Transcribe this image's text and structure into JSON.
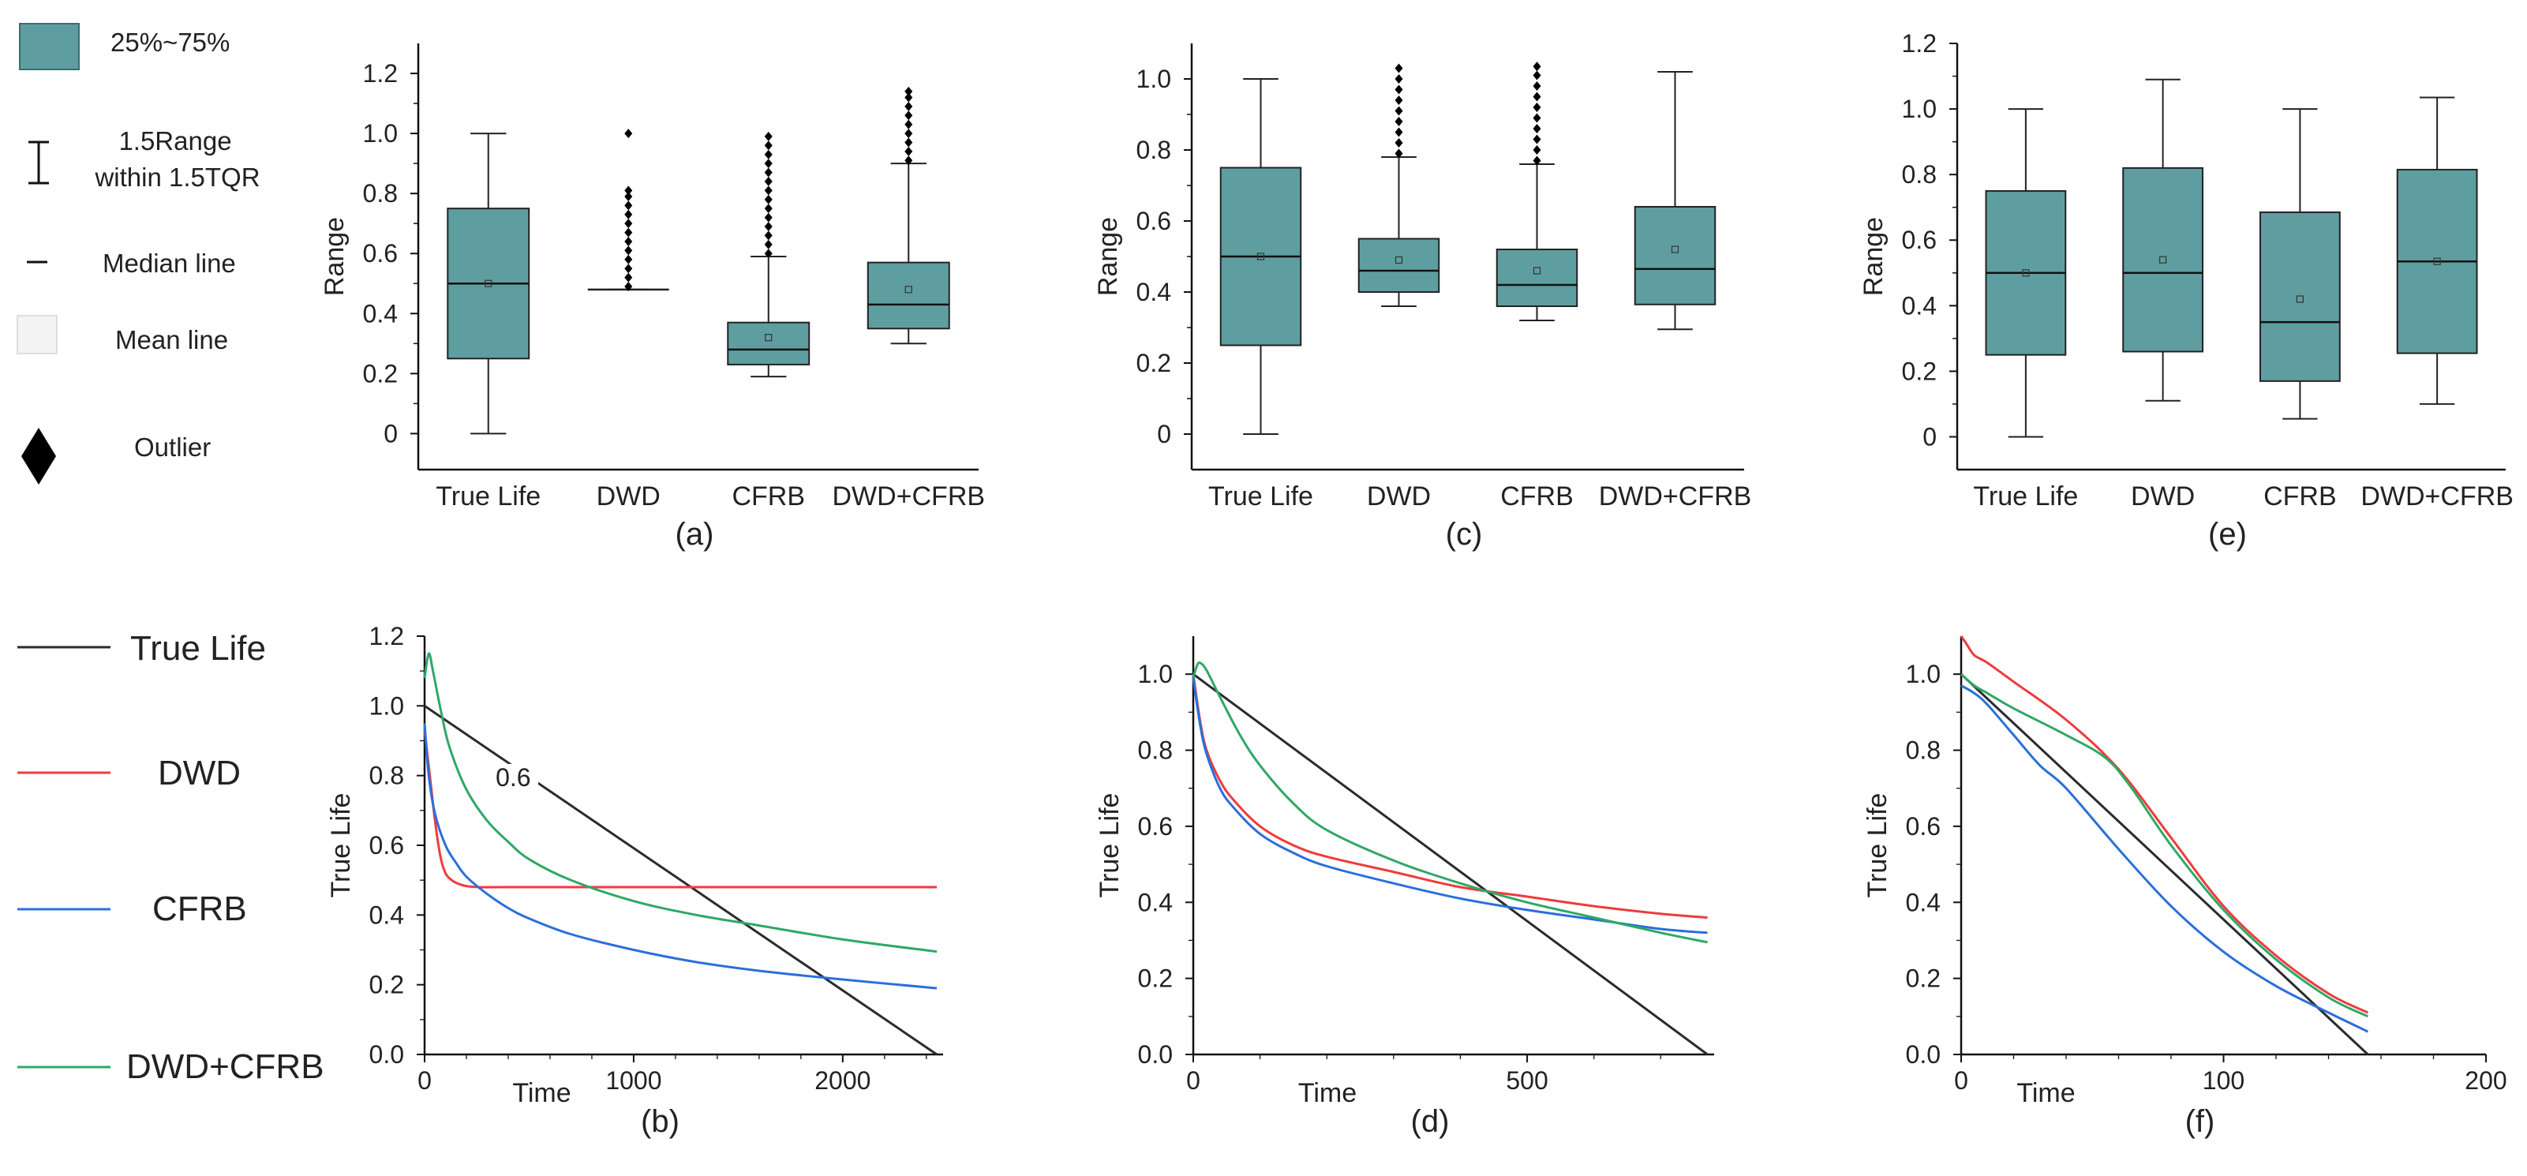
{
  "box_legend": {
    "box_label": "25%~75%",
    "whisker_label_line1": "1.5Range",
    "whisker_label_line2": "within 1.5TQR",
    "median_label": "Median line",
    "mean_label": "Mean line",
    "outlier_label": "Outlier"
  },
  "line_legend": {
    "items": [
      {
        "label": "True Life",
        "color": "#2b2b2b"
      },
      {
        "label": "DWD",
        "color": "#ee3b3b"
      },
      {
        "label": "CFRB",
        "color": "#2a6fdb"
      },
      {
        "label": "DWD+CFRB",
        "color": "#2fa866"
      }
    ]
  },
  "colors": {
    "box_fill": "#5f9ea0",
    "outlier": "#000000"
  },
  "chart_data": [
    {
      "id": "a",
      "type": "box",
      "panel_label": "(a)",
      "ylabel": "Range",
      "ylim": [
        -0.12,
        1.3
      ],
      "yticks": [
        0,
        0.2,
        0.4,
        0.6,
        0.8,
        1.0,
        1.2
      ],
      "ytick_labels": [
        "0",
        "0.2",
        "0.4",
        "0.6",
        "0.8",
        "1.0",
        "1.2"
      ],
      "categories": [
        "True Life",
        "DWD",
        "CFRB",
        "DWD+CFRB"
      ],
      "boxes": [
        {
          "whislo": 0.0,
          "q1": 0.25,
          "median": 0.5,
          "mean": 0.5,
          "q3": 0.75,
          "whishi": 1.0,
          "outliers": []
        },
        {
          "whislo": 0.48,
          "q1": 0.48,
          "median": 0.48,
          "mean": 0.48,
          "q3": 0.48,
          "whishi": 0.48,
          "outliers": [
            0.49,
            0.52,
            0.55,
            0.58,
            0.61,
            0.64,
            0.67,
            0.7,
            0.73,
            0.76,
            0.79,
            0.81,
            1.0
          ]
        },
        {
          "whislo": 0.19,
          "q1": 0.23,
          "median": 0.28,
          "mean": 0.32,
          "q3": 0.37,
          "whishi": 0.59,
          "outliers": [
            0.6,
            0.63,
            0.66,
            0.69,
            0.72,
            0.75,
            0.78,
            0.81,
            0.84,
            0.87,
            0.9,
            0.93,
            0.96,
            0.99
          ]
        },
        {
          "whislo": 0.3,
          "q1": 0.35,
          "median": 0.43,
          "mean": 0.48,
          "q3": 0.57,
          "whishi": 0.9,
          "outliers": [
            0.91,
            0.94,
            0.97,
            1.0,
            1.03,
            1.06,
            1.09,
            1.12,
            1.14
          ]
        }
      ]
    },
    {
      "id": "b",
      "type": "line",
      "panel_label": "(b)",
      "xlabel": "Time",
      "ylabel": "True Life",
      "xlim": [
        0,
        2480
      ],
      "ylim": [
        0,
        1.2
      ],
      "xticks": [
        0,
        1000,
        2000
      ],
      "xtick_labels": [
        "0",
        "1000",
        "2000"
      ],
      "yticks": [
        0,
        0.2,
        0.4,
        0.6,
        0.8,
        1.0,
        1.2
      ],
      "ytick_labels": [
        "0.0",
        "0.2",
        "0.4",
        "0.6",
        "0.8",
        "1.0",
        "1.2"
      ],
      "annotation": {
        "text": "0.6",
        "x": 340,
        "y": 0.77
      },
      "series": [
        {
          "name": "True Life",
          "x": [
            0,
            2450
          ],
          "y": [
            1.0,
            0
          ]
        },
        {
          "name": "DWD",
          "x": [
            0,
            25,
            50,
            75,
            100,
            130,
            160,
            200,
            260,
            400,
            1000,
            2450
          ],
          "y": [
            0.93,
            0.8,
            0.67,
            0.57,
            0.52,
            0.5,
            0.49,
            0.483,
            0.48,
            0.48,
            0.48,
            0.48
          ]
        },
        {
          "name": "CFRB",
          "x": [
            0,
            20,
            50,
            100,
            150,
            200,
            300,
            400,
            500,
            700,
            1000,
            1300,
            1600,
            2000,
            2450
          ],
          "y": [
            0.95,
            0.8,
            0.69,
            0.6,
            0.55,
            0.51,
            0.46,
            0.42,
            0.39,
            0.345,
            0.3,
            0.265,
            0.24,
            0.215,
            0.19
          ]
        },
        {
          "name": "DWD+CFRB",
          "x": [
            0,
            20,
            40,
            80,
            120,
            200,
            300,
            400,
            500,
            700,
            1000,
            1300,
            1600,
            2000,
            2450
          ],
          "y": [
            1.08,
            1.15,
            1.1,
            0.98,
            0.88,
            0.76,
            0.67,
            0.61,
            0.56,
            0.5,
            0.44,
            0.4,
            0.37,
            0.33,
            0.295
          ]
        }
      ]
    },
    {
      "id": "c",
      "type": "box",
      "panel_label": "(c)",
      "ylabel": "Range",
      "ylim": [
        -0.1,
        1.1
      ],
      "yticks": [
        0,
        0.2,
        0.4,
        0.6,
        0.8,
        1.0
      ],
      "ytick_labels": [
        "0",
        "0.2",
        "0.4",
        "0.6",
        "0.8",
        "1.0"
      ],
      "categories": [
        "True Life",
        "DWD",
        "CFRB",
        "DWD+CFRB"
      ],
      "boxes": [
        {
          "whislo": 0.0,
          "q1": 0.25,
          "median": 0.5,
          "mean": 0.5,
          "q3": 0.75,
          "whishi": 1.0,
          "outliers": []
        },
        {
          "whislo": 0.36,
          "q1": 0.4,
          "median": 0.46,
          "mean": 0.49,
          "q3": 0.55,
          "whishi": 0.78,
          "outliers": [
            0.79,
            0.82,
            0.85,
            0.88,
            0.91,
            0.94,
            0.97,
            1.0,
            1.03
          ]
        },
        {
          "whislo": 0.32,
          "q1": 0.36,
          "median": 0.42,
          "mean": 0.46,
          "q3": 0.52,
          "whishi": 0.76,
          "outliers": [
            0.77,
            0.8,
            0.83,
            0.86,
            0.89,
            0.92,
            0.95,
            0.98,
            1.01,
            1.035
          ]
        },
        {
          "whislo": 0.295,
          "q1": 0.365,
          "median": 0.465,
          "mean": 0.52,
          "q3": 0.64,
          "whishi": 1.02,
          "outliers": []
        }
      ]
    },
    {
      "id": "d",
      "type": "line",
      "panel_label": "(d)",
      "xlabel": "Time",
      "ylabel": "True Life",
      "xlim": [
        0,
        780
      ],
      "ylim": [
        0,
        1.1
      ],
      "xticks": [
        0,
        500
      ],
      "xtick_labels": [
        "0",
        "500"
      ],
      "yticks": [
        0,
        0.2,
        0.4,
        0.6,
        0.8,
        1.0
      ],
      "ytick_labels": [
        "0.0",
        "0.2",
        "0.4",
        "0.6",
        "0.8",
        "1.0"
      ],
      "series": [
        {
          "name": "True Life",
          "x": [
            0,
            770
          ],
          "y": [
            1.0,
            0
          ]
        },
        {
          "name": "DWD",
          "x": [
            0,
            10,
            20,
            40,
            60,
            100,
            150,
            200,
            300,
            400,
            500,
            600,
            700,
            770
          ],
          "y": [
            1.0,
            0.88,
            0.8,
            0.72,
            0.67,
            0.6,
            0.55,
            0.52,
            0.48,
            0.44,
            0.415,
            0.39,
            0.37,
            0.36
          ]
        },
        {
          "name": "CFRB",
          "x": [
            0,
            10,
            20,
            40,
            60,
            100,
            150,
            200,
            300,
            400,
            500,
            600,
            700,
            770
          ],
          "y": [
            0.99,
            0.87,
            0.79,
            0.7,
            0.65,
            0.58,
            0.53,
            0.495,
            0.45,
            0.41,
            0.38,
            0.355,
            0.33,
            0.32
          ]
        },
        {
          "name": "DWD+CFRB",
          "x": [
            0,
            5,
            10,
            20,
            40,
            70,
            100,
            150,
            200,
            300,
            400,
            500,
            600,
            700,
            770
          ],
          "y": [
            0.99,
            1.02,
            1.03,
            1.01,
            0.94,
            0.84,
            0.76,
            0.66,
            0.59,
            0.51,
            0.45,
            0.4,
            0.36,
            0.32,
            0.295
          ]
        }
      ]
    },
    {
      "id": "e",
      "type": "box",
      "panel_label": "(e)",
      "ylabel": "Range",
      "ylim": [
        -0.1,
        1.2
      ],
      "yticks": [
        0,
        0.2,
        0.4,
        0.6,
        0.8,
        1.0,
        1.2
      ],
      "ytick_labels": [
        "0",
        "0.2",
        "0.4",
        "0.6",
        "0.8",
        "1.0",
        "1.2"
      ],
      "categories": [
        "True Life",
        "DWD",
        "CFRB",
        "DWD+CFRB"
      ],
      "boxes": [
        {
          "whislo": 0.0,
          "q1": 0.25,
          "median": 0.5,
          "mean": 0.5,
          "q3": 0.75,
          "whishi": 1.0,
          "outliers": []
        },
        {
          "whislo": 0.11,
          "q1": 0.26,
          "median": 0.5,
          "mean": 0.54,
          "q3": 0.82,
          "whishi": 1.09,
          "outliers": []
        },
        {
          "whislo": 0.055,
          "q1": 0.17,
          "median": 0.35,
          "mean": 0.42,
          "q3": 0.685,
          "whishi": 1.0,
          "outliers": []
        },
        {
          "whislo": 0.1,
          "q1": 0.255,
          "median": 0.535,
          "mean": 0.535,
          "q3": 0.815,
          "whishi": 1.035,
          "outliers": []
        }
      ]
    },
    {
      "id": "f",
      "type": "line",
      "panel_label": "(f)",
      "xlabel": "Time",
      "ylabel": "True Life",
      "xlim": [
        0,
        200
      ],
      "ylim": [
        0,
        1.1
      ],
      "xticks": [
        0,
        100,
        200
      ],
      "xtick_labels": [
        "0",
        "100",
        "200"
      ],
      "yticks": [
        0,
        0.2,
        0.4,
        0.6,
        0.8,
        1.0
      ],
      "ytick_labels": [
        "0.0",
        "0.2",
        "0.4",
        "0.6",
        "0.8",
        "1.0"
      ],
      "series": [
        {
          "name": "True Life",
          "x": [
            0,
            155
          ],
          "y": [
            1.0,
            0
          ]
        },
        {
          "name": "DWD",
          "x": [
            0,
            2,
            5,
            10,
            20,
            40,
            60,
            80,
            100,
            120,
            140,
            155
          ],
          "y": [
            1.1,
            1.08,
            1.05,
            1.03,
            0.98,
            0.88,
            0.75,
            0.57,
            0.39,
            0.26,
            0.16,
            0.11
          ]
        },
        {
          "name": "CFRB",
          "x": [
            0,
            5,
            10,
            20,
            30,
            40,
            60,
            80,
            100,
            120,
            140,
            155
          ],
          "y": [
            0.97,
            0.95,
            0.92,
            0.84,
            0.76,
            0.7,
            0.54,
            0.39,
            0.27,
            0.18,
            0.11,
            0.06
          ]
        },
        {
          "name": "DWD+CFRB",
          "x": [
            0,
            5,
            10,
            20,
            40,
            55,
            65,
            80,
            100,
            120,
            140,
            155
          ],
          "y": [
            1.0,
            0.97,
            0.95,
            0.91,
            0.84,
            0.78,
            0.7,
            0.55,
            0.38,
            0.25,
            0.15,
            0.1
          ]
        }
      ]
    }
  ]
}
